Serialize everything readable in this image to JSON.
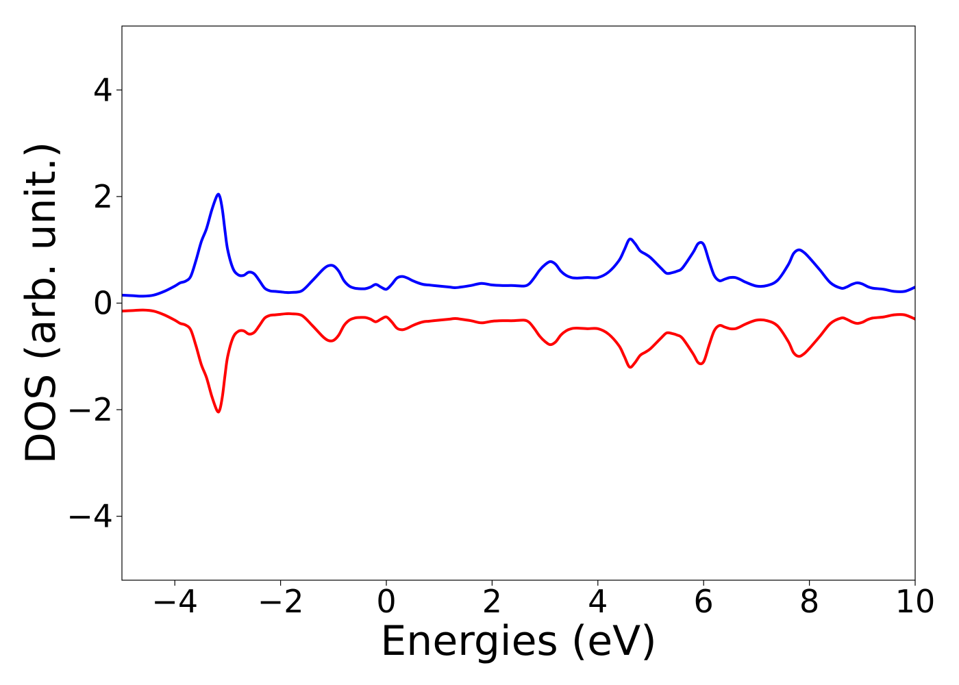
{
  "chart_data": {
    "type": "line",
    "title": "",
    "xlabel": "Energies (eV)",
    "ylabel": "DOS (arb. unit.)",
    "xlim": [
      -5,
      10
    ],
    "ylim": [
      -5.2,
      5.2
    ],
    "xticks": [
      -4,
      -2,
      0,
      2,
      4,
      6,
      8,
      10
    ],
    "xtick_labels": [
      "−4",
      "−2",
      "0",
      "2",
      "4",
      "6",
      "8",
      "10"
    ],
    "yticks": [
      -4,
      -2,
      0,
      2,
      4
    ],
    "ytick_labels": [
      "−4",
      "−2",
      "0",
      "2",
      "4"
    ],
    "grid": false,
    "legend": "none",
    "series": [
      {
        "color": "#0000ff",
        "x": [
          -5,
          -4.8,
          -4.6,
          -4.4,
          -4.2,
          -4.0,
          -3.9,
          -3.8,
          -3.7,
          -3.6,
          -3.5,
          -3.4,
          -3.3,
          -3.2,
          -3.15,
          -3.1,
          -3.05,
          -3.0,
          -2.9,
          -2.8,
          -2.7,
          -2.6,
          -2.5,
          -2.4,
          -2.3,
          -2.2,
          -2.1,
          -2.0,
          -1.9,
          -1.8,
          -1.6,
          -1.4,
          -1.2,
          -1.1,
          -1.0,
          -0.9,
          -0.8,
          -0.7,
          -0.6,
          -0.5,
          -0.4,
          -0.3,
          -0.2,
          -0.1,
          0.0,
          0.1,
          0.2,
          0.3,
          0.4,
          0.5,
          0.6,
          0.7,
          0.8,
          0.9,
          1.0,
          1.1,
          1.2,
          1.3,
          1.4,
          1.6,
          1.8,
          2.0,
          2.2,
          2.4,
          2.6,
          2.7,
          2.8,
          2.9,
          3.0,
          3.1,
          3.2,
          3.3,
          3.4,
          3.5,
          3.6,
          3.8,
          4.0,
          4.2,
          4.4,
          4.5,
          4.6,
          4.7,
          4.8,
          4.9,
          5.0,
          5.2,
          5.3,
          5.4,
          5.5,
          5.6,
          5.8,
          5.9,
          6.0,
          6.1,
          6.2,
          6.3,
          6.4,
          6.5,
          6.6,
          6.7,
          6.8,
          7.0,
          7.2,
          7.4,
          7.6,
          7.7,
          7.8,
          7.9,
          8.0,
          8.2,
          8.4,
          8.6,
          8.7,
          8.8,
          8.9,
          9.0,
          9.1,
          9.2,
          9.4,
          9.6,
          9.8,
          10.0
        ],
        "y": [
          0.15,
          0.14,
          0.13,
          0.15,
          0.22,
          0.32,
          0.38,
          0.41,
          0.5,
          0.8,
          1.15,
          1.4,
          1.75,
          2.02,
          2.0,
          1.75,
          1.35,
          1.0,
          0.65,
          0.53,
          0.52,
          0.58,
          0.55,
          0.42,
          0.28,
          0.23,
          0.22,
          0.21,
          0.2,
          0.2,
          0.23,
          0.42,
          0.63,
          0.7,
          0.7,
          0.6,
          0.42,
          0.32,
          0.28,
          0.27,
          0.27,
          0.3,
          0.35,
          0.3,
          0.26,
          0.35,
          0.47,
          0.5,
          0.47,
          0.42,
          0.38,
          0.35,
          0.34,
          0.33,
          0.32,
          0.31,
          0.3,
          0.29,
          0.3,
          0.33,
          0.37,
          0.34,
          0.33,
          0.33,
          0.32,
          0.36,
          0.48,
          0.62,
          0.72,
          0.78,
          0.73,
          0.6,
          0.52,
          0.48,
          0.47,
          0.48,
          0.48,
          0.58,
          0.8,
          1.0,
          1.2,
          1.12,
          0.98,
          0.92,
          0.85,
          0.65,
          0.56,
          0.57,
          0.6,
          0.66,
          0.95,
          1.12,
          1.1,
          0.8,
          0.52,
          0.42,
          0.45,
          0.48,
          0.48,
          0.44,
          0.39,
          0.32,
          0.33,
          0.43,
          0.72,
          0.93,
          1.0,
          0.95,
          0.85,
          0.62,
          0.38,
          0.28,
          0.3,
          0.35,
          0.38,
          0.36,
          0.31,
          0.28,
          0.26,
          0.22,
          0.22,
          0.3
        ]
      },
      {
        "color": "#ff0000",
        "x": [
          -5,
          -4.8,
          -4.6,
          -4.4,
          -4.2,
          -4.0,
          -3.9,
          -3.8,
          -3.7,
          -3.6,
          -3.5,
          -3.4,
          -3.3,
          -3.2,
          -3.15,
          -3.1,
          -3.05,
          -3.0,
          -2.9,
          -2.8,
          -2.7,
          -2.6,
          -2.5,
          -2.4,
          -2.3,
          -2.2,
          -2.1,
          -2.0,
          -1.9,
          -1.8,
          -1.6,
          -1.4,
          -1.2,
          -1.1,
          -1.0,
          -0.9,
          -0.8,
          -0.7,
          -0.6,
          -0.5,
          -0.4,
          -0.3,
          -0.2,
          -0.1,
          0.0,
          0.1,
          0.2,
          0.3,
          0.4,
          0.5,
          0.6,
          0.7,
          0.8,
          0.9,
          1.0,
          1.1,
          1.2,
          1.3,
          1.4,
          1.6,
          1.8,
          2.0,
          2.2,
          2.4,
          2.6,
          2.7,
          2.8,
          2.9,
          3.0,
          3.1,
          3.2,
          3.3,
          3.4,
          3.5,
          3.6,
          3.8,
          4.0,
          4.2,
          4.4,
          4.5,
          4.6,
          4.7,
          4.8,
          4.9,
          5.0,
          5.2,
          5.3,
          5.4,
          5.5,
          5.6,
          5.8,
          5.9,
          6.0,
          6.1,
          6.2,
          6.3,
          6.4,
          6.5,
          6.6,
          6.7,
          6.8,
          7.0,
          7.2,
          7.4,
          7.6,
          7.7,
          7.8,
          7.9,
          8.0,
          8.2,
          8.4,
          8.6,
          8.7,
          8.8,
          8.9,
          9.0,
          9.1,
          9.2,
          9.4,
          9.6,
          9.8,
          10.0
        ],
        "y": [
          -0.15,
          -0.14,
          -0.13,
          -0.15,
          -0.22,
          -0.32,
          -0.38,
          -0.41,
          -0.5,
          -0.8,
          -1.15,
          -1.4,
          -1.75,
          -2.02,
          -2.0,
          -1.75,
          -1.35,
          -1.0,
          -0.65,
          -0.53,
          -0.52,
          -0.58,
          -0.55,
          -0.42,
          -0.28,
          -0.23,
          -0.22,
          -0.21,
          -0.2,
          -0.2,
          -0.23,
          -0.42,
          -0.63,
          -0.7,
          -0.7,
          -0.6,
          -0.42,
          -0.32,
          -0.28,
          -0.27,
          -0.27,
          -0.3,
          -0.35,
          -0.3,
          -0.26,
          -0.35,
          -0.47,
          -0.5,
          -0.47,
          -0.42,
          -0.38,
          -0.35,
          -0.34,
          -0.33,
          -0.32,
          -0.31,
          -0.3,
          -0.29,
          -0.3,
          -0.33,
          -0.37,
          -0.34,
          -0.33,
          -0.33,
          -0.32,
          -0.36,
          -0.48,
          -0.62,
          -0.72,
          -0.78,
          -0.73,
          -0.6,
          -0.52,
          -0.48,
          -0.47,
          -0.48,
          -0.48,
          -0.58,
          -0.8,
          -1.0,
          -1.2,
          -1.12,
          -0.98,
          -0.92,
          -0.85,
          -0.65,
          -0.56,
          -0.57,
          -0.6,
          -0.66,
          -0.95,
          -1.12,
          -1.1,
          -0.8,
          -0.52,
          -0.42,
          -0.45,
          -0.48,
          -0.48,
          -0.44,
          -0.39,
          -0.32,
          -0.33,
          -0.43,
          -0.72,
          -0.93,
          -1.0,
          -0.95,
          -0.85,
          -0.62,
          -0.38,
          -0.28,
          -0.3,
          -0.35,
          -0.38,
          -0.36,
          -0.31,
          -0.28,
          -0.26,
          -0.22,
          -0.22,
          -0.3
        ]
      }
    ]
  }
}
